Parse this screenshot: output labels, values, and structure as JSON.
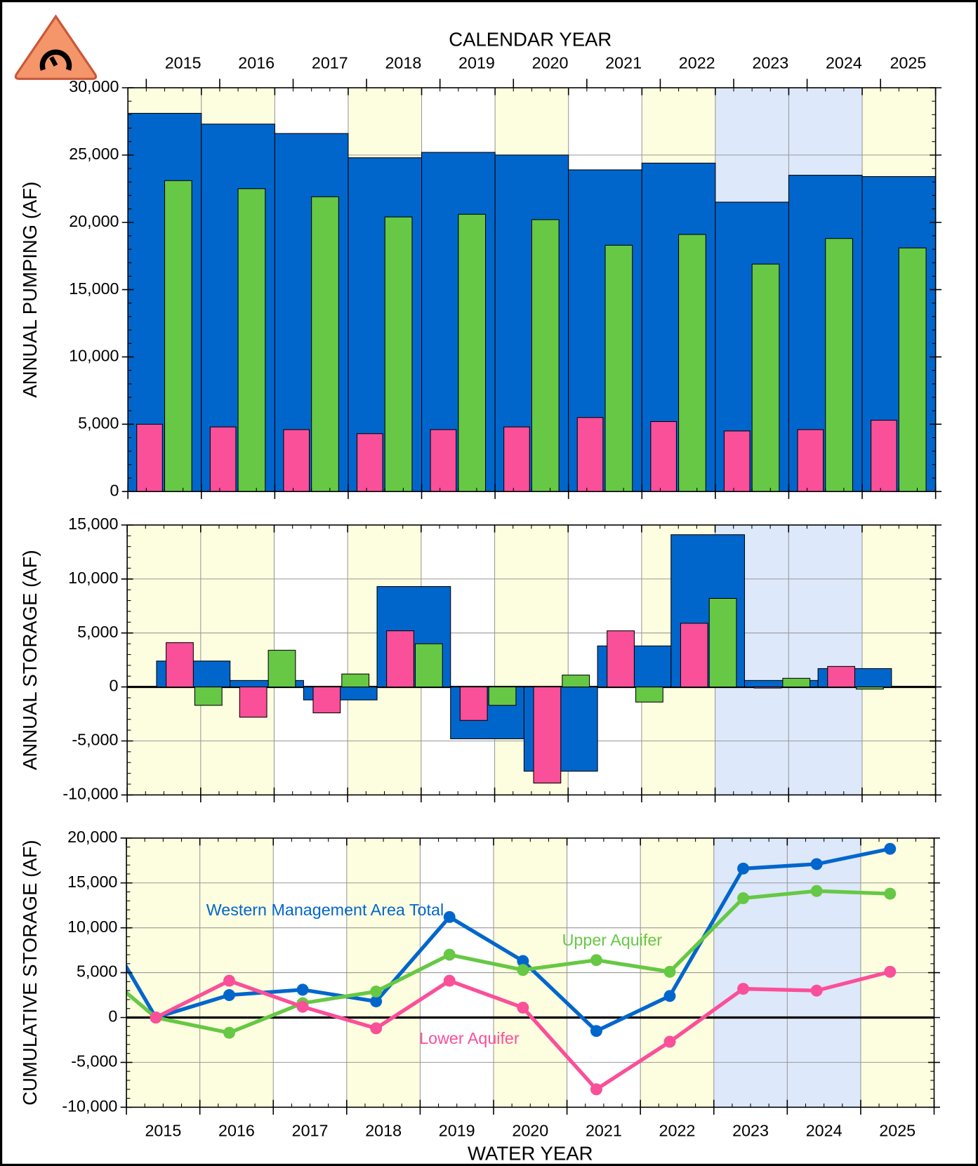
{
  "chart_data": [
    {
      "type": "bar",
      "ylabel": "ANNUAL PUMPING (AF)",
      "x2label": "CALENDAR YEAR",
      "categories": [
        "2015",
        "2016",
        "2017",
        "2018",
        "2019",
        "2020",
        "2021",
        "2022",
        "2023",
        "2024",
        "2025"
      ],
      "x2categories": [
        "2015",
        "2016",
        "2017",
        "2018",
        "2019",
        "2020",
        "2021",
        "2022",
        "2023",
        "2024",
        "2025"
      ],
      "band_colors": [
        "#fdfddf",
        "#fdfddf",
        "#ffffff",
        "#fdfddf",
        "#ffffff",
        "#fdfddf",
        "#ffffff",
        "#fdfddf",
        "#dde8fa",
        "#dde8fa",
        "#fdfddf"
      ],
      "series": [
        {
          "name": "Western Management Area Total",
          "color": "#0066cc",
          "values": [
            28100,
            27300,
            26600,
            24800,
            25200,
            25000,
            23900,
            24400,
            21500,
            23500,
            23400
          ]
        },
        {
          "name": "Lower Aquifer",
          "color": "#fa4f99",
          "values": [
            5000,
            4800,
            4600,
            4300,
            4600,
            4800,
            5500,
            5200,
            4500,
            4600,
            5300
          ]
        },
        {
          "name": "Upper Aquifer",
          "color": "#66c844",
          "values": [
            23100,
            22500,
            21900,
            20400,
            20600,
            20200,
            18300,
            19100,
            16900,
            18800,
            18100
          ]
        }
      ],
      "ylim": [
        0,
        30000
      ],
      "yticks": [
        0,
        {
          "value": 5000,
          "label": "5,000"
        },
        {
          "value": 10000,
          "label": "10,000"
        },
        {
          "value": 15000,
          "label": "15,000"
        },
        {
          "value": 20000,
          "label": "20,000"
        },
        {
          "value": 25000,
          "label": "25,000"
        },
        {
          "value": 30000,
          "label": "30,000"
        }
      ],
      "grid": true
    },
    {
      "type": "bar",
      "ylabel": "ANNUAL STORAGE (AF)",
      "categories": [
        "2015",
        "2016",
        "2017",
        "2018",
        "2019",
        "2020",
        "2021",
        "2022",
        "2023",
        "2024",
        "2025"
      ],
      "band_colors": [
        "#fdfddf",
        "#fdfddf",
        "#ffffff",
        "#fdfddf",
        "#ffffff",
        "#fdfddf",
        "#ffffff",
        "#fdfddf",
        "#dde8fa",
        "#dde8fa",
        "#fdfddf"
      ],
      "series": [
        {
          "name": "Western Management Area Total",
          "color": "#0066cc",
          "values": [
            2400,
            600,
            -1200,
            9300,
            -4800,
            -7800,
            3800,
            14100,
            600,
            1700,
            null
          ]
        },
        {
          "name": "Lower Aquifer",
          "color": "#fa4f99",
          "values": [
            4100,
            -2800,
            -2400,
            5200,
            -3100,
            -8900,
            5200,
            5900,
            -100,
            1900,
            null
          ]
        },
        {
          "name": "Upper Aquifer",
          "color": "#66c844",
          "values": [
            -1700,
            3400,
            1200,
            4000,
            -1700,
            1100,
            -1400,
            8200,
            800,
            -200,
            null
          ]
        }
      ],
      "ylim": [
        -10000,
        15000
      ],
      "yticks": [
        {
          "value": -10000,
          "label": "-10,000"
        },
        {
          "value": -5000,
          "label": "-5,000"
        },
        0,
        {
          "value": 5000,
          "label": "5,000"
        },
        {
          "value": 10000,
          "label": "10,000"
        },
        {
          "value": 15000,
          "label": "15,000"
        }
      ],
      "grid": true
    },
    {
      "type": "line",
      "ylabel": "CUMULATIVE STORAGE (AF)",
      "xlabel": "WATER YEAR",
      "categories": [
        null,
        "2015",
        "2016",
        "2017",
        "2018",
        "2019",
        "2020",
        "2021",
        "2022",
        "2023",
        "2024",
        "2025"
      ],
      "band_colors": [
        "#fdfddf",
        "#fdfddf",
        "#fdfddf",
        "#ffffff",
        "#fdfddf",
        "#ffffff",
        "#fdfddf",
        "#ffffff",
        "#fdfddf",
        "#dde8fa",
        "#dde8fa",
        "#fdfddf"
      ],
      "series": [
        {
          "name": "Western Management Area Total",
          "color": "#0066cc",
          "values": [
            14000,
            0,
            2500,
            3100,
            1800,
            11200,
            6300,
            -1500,
            2400,
            16600,
            17100,
            18800
          ]
        },
        {
          "name": "Upper Aquifer",
          "color": "#66c844",
          "values": [
            6900,
            0,
            -1700,
            1600,
            2900,
            7000,
            5300,
            6400,
            5100,
            13300,
            14100,
            13800
          ]
        },
        {
          "name": "Lower Aquifer",
          "color": "#fa4f99",
          "values": [
            null,
            0,
            4100,
            1200,
            -1200,
            4100,
            1100,
            -8000,
            -2700,
            3200,
            3000,
            5100
          ]
        }
      ],
      "ylim": [
        -10000,
        20000
      ],
      "yticks": [
        {
          "value": -10000,
          "label": "-10,000"
        },
        {
          "value": -5000,
          "label": "-5,000"
        },
        0,
        {
          "value": 5000,
          "label": "5,000"
        },
        {
          "value": 10000,
          "label": "10,000"
        },
        {
          "value": 15000,
          "label": "15,000"
        },
        {
          "value": 20000,
          "label": "20,000"
        }
      ],
      "grid": true
    }
  ]
}
